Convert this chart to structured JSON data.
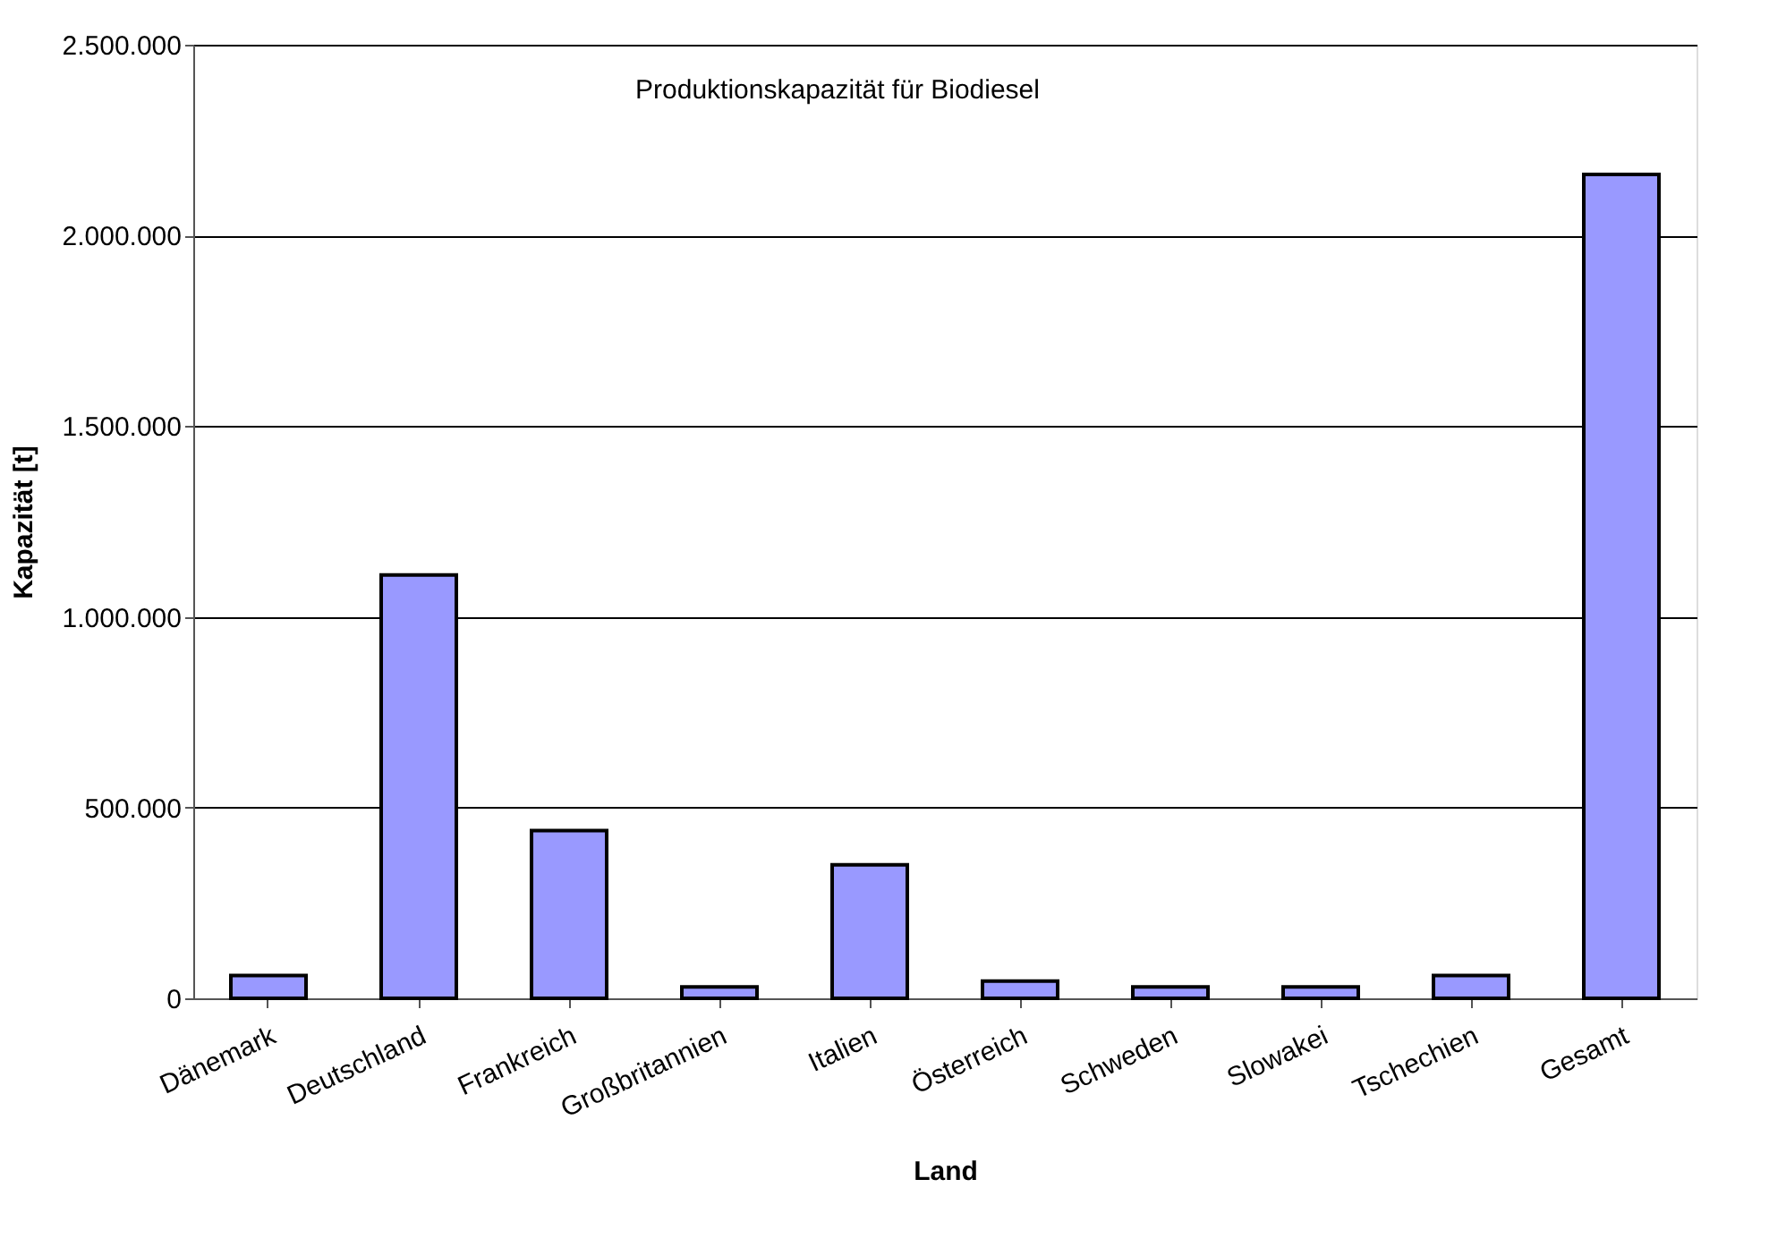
{
  "chart_data": {
    "type": "bar",
    "title": "Produktionskapazität für Biodiesel",
    "xlabel": "Land",
    "ylabel": "Kapazität [t]",
    "categories": [
      "Dänemark",
      "Deutschland",
      "Frankreich",
      "Großbritannien",
      "Italien",
      "Österreich",
      "Schweden",
      "Slowakei",
      "Tschechien",
      "Gesamt"
    ],
    "values": [
      60000,
      1110000,
      440000,
      30000,
      350000,
      45000,
      30000,
      30000,
      60000,
      2160000
    ],
    "color": "#9999ff",
    "ylim": [
      0,
      2500000
    ],
    "yticks": [
      0,
      {
        "value": 500000,
        "label": "500.000"
      },
      {
        "value": 1000000,
        "label": "1.000.000"
      },
      {
        "value": 1500000,
        "label": "1.500.000"
      },
      {
        "value": 2000000,
        "label": "2.000.000"
      },
      {
        "value": 2500000,
        "label": "2.500.000"
      }
    ],
    "grid": "y"
  }
}
